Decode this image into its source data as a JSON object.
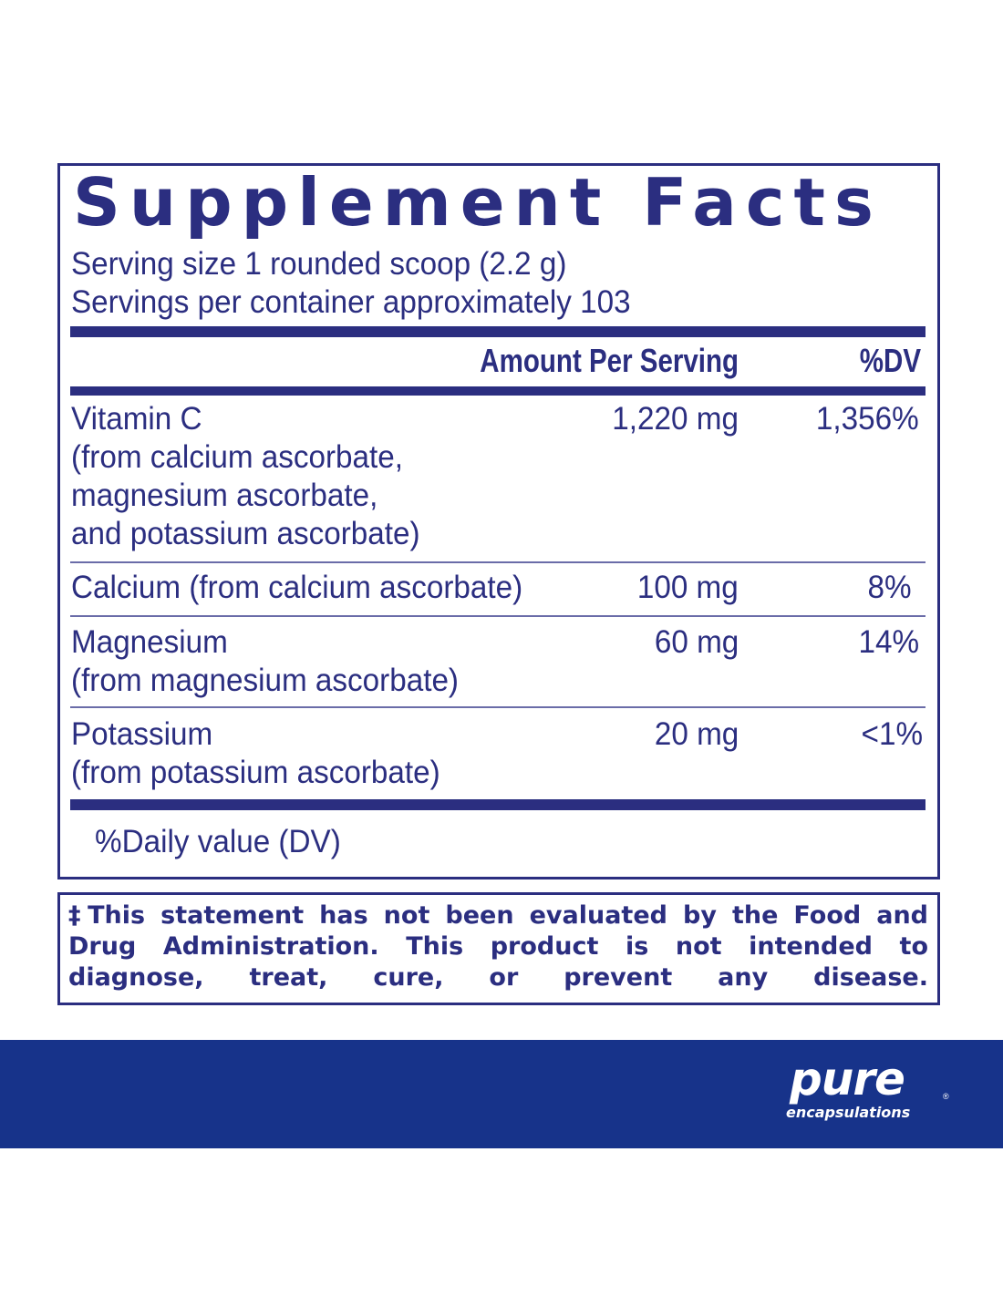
{
  "title": "Supplement Facts",
  "serving_size": "Serving size  1 rounded scoop (2.2 g)",
  "servings_per_container": "Servings per container  approximately 103",
  "header": {
    "amount": "Amount Per Serving",
    "dv": "%DV"
  },
  "rows": [
    {
      "name_lines": [
        "Vitamin C",
        "(from calcium ascorbate,",
        "magnesium ascorbate,",
        "and potassium ascorbate)"
      ],
      "amount": "1,220 mg",
      "dv": "1,356%"
    },
    {
      "name_lines": [
        "Calcium (from calcium ascorbate)"
      ],
      "amount": "100 mg",
      "dv": "8%"
    },
    {
      "name_lines": [
        "Magnesium",
        "(from magnesium ascorbate)"
      ],
      "amount": "60 mg",
      "dv": "14%"
    },
    {
      "name_lines": [
        "Potassium",
        "(from potassium ascorbate)"
      ],
      "amount": "20 mg",
      "dv": "<1%"
    }
  ],
  "footnote": "%Daily value (DV)",
  "disclaimer": "‡This statement has not been evaluated by the Food and Drug Administration. This product is not intended to diagnose, treat, cure, or prevent any disease.",
  "brand": {
    "name": "pure",
    "sub": "encapsulations",
    "reg": "®"
  },
  "colors": {
    "text": "#2b2e80",
    "banner": "#17338a"
  }
}
